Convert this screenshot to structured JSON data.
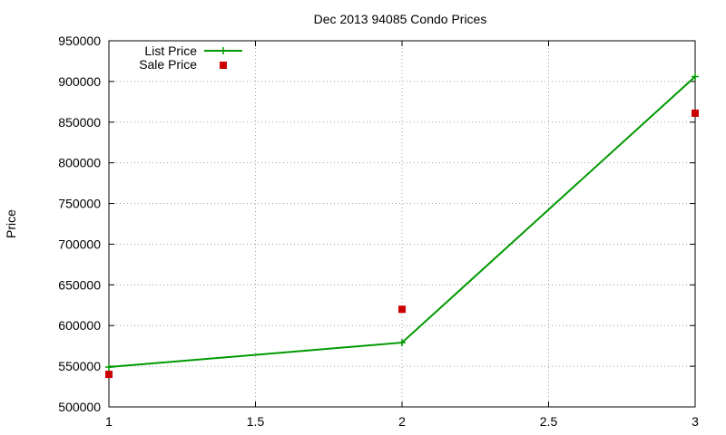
{
  "chart_data": {
    "type": "line",
    "title": "Dec 2013 94085 Condo Prices",
    "xlabel": "",
    "ylabel": "Price",
    "xlim": [
      1,
      3
    ],
    "ylim": [
      500000,
      950000
    ],
    "x_ticks": [
      "1",
      "1.5",
      "2",
      "2.5",
      "3"
    ],
    "y_ticks": [
      "500000",
      "550000",
      "600000",
      "650000",
      "700000",
      "750000",
      "800000",
      "850000",
      "900000",
      "950000"
    ],
    "grid": true,
    "legend_position": "top-left",
    "series": [
      {
        "name": "List Price",
        "style": "line-with-plus-markers",
        "color": "#009900",
        "x": [
          1,
          2,
          3
        ],
        "y": [
          549000,
          579000,
          906000
        ]
      },
      {
        "name": "Sale Price",
        "style": "square-markers",
        "color": "#cc0000",
        "x": [
          1,
          2,
          3
        ],
        "y": [
          540000,
          620000,
          861000
        ]
      }
    ]
  }
}
